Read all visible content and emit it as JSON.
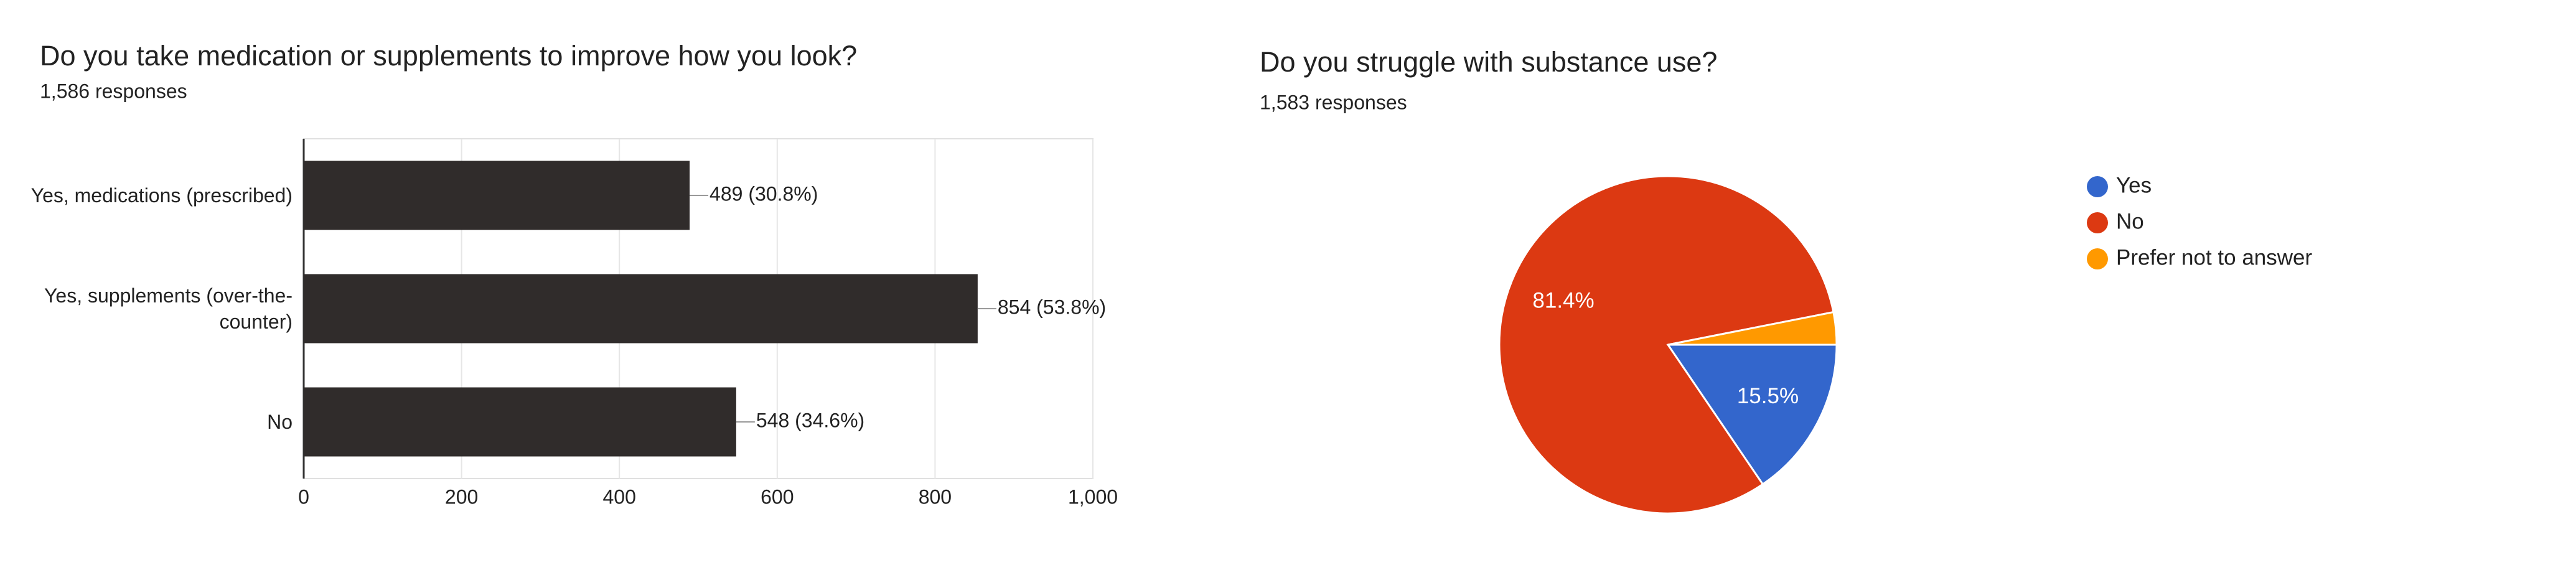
{
  "chart_data": [
    {
      "type": "bar",
      "title": "Do you take medication or supplements to improve how you look?",
      "subtitle": "1,586 responses",
      "categories": [
        "Yes, medications (prescribed)",
        "Yes, supplements (over-the-counter)",
        "No"
      ],
      "values": [
        489,
        854,
        548
      ],
      "value_labels": [
        "489 (30.8%)",
        "854 (53.8%)",
        "548 (34.6%)"
      ],
      "color": "#302c2b",
      "xlim": [
        0,
        1000
      ],
      "xticks": [
        0,
        200,
        400,
        600,
        800,
        {
          "value": 1000,
          "label": "1,000"
        }
      ],
      "grid": true
    },
    {
      "type": "pie",
      "title": "Do you struggle with substance use?",
      "subtitle": "1,583 responses",
      "categories": [
        "Yes",
        "No",
        "Prefer not to answer"
      ],
      "values": [
        15.5,
        81.4,
        3.1
      ],
      "value_labels": [
        "15.5%",
        "81.4%",
        null
      ],
      "colors": [
        "#3366cc",
        "#dc3912",
        "#ff9900"
      ],
      "legend": "right"
    }
  ]
}
